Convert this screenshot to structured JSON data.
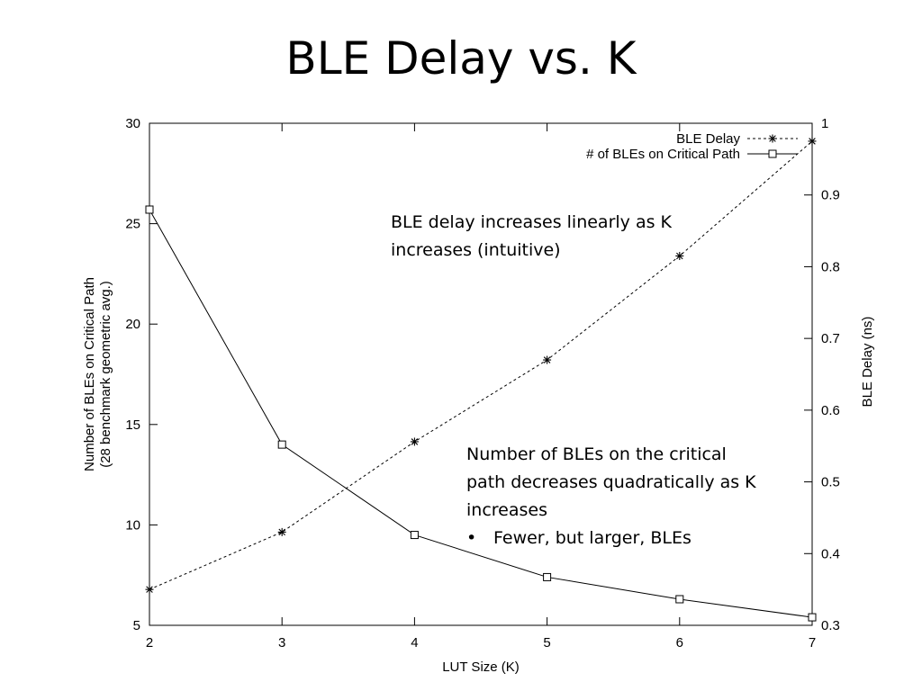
{
  "slide": {
    "title": "BLE Delay vs. K"
  },
  "chart_data": {
    "type": "line",
    "xlabel": "LUT Size (K)",
    "ylabel_left": [
      "Number of BLEs on Critical Path",
      "(28 benchmark geometric avg.)"
    ],
    "ylabel_right": "BLE Delay (ns)",
    "x": [
      2,
      3,
      4,
      5,
      6,
      7
    ],
    "xlim": [
      2,
      7
    ],
    "ylim_left": [
      5,
      30
    ],
    "ylim_right": [
      0.3,
      1
    ],
    "xticks": [
      "2",
      "3",
      "4",
      "5",
      "6",
      "7"
    ],
    "yticks_left": [
      "5",
      "10",
      "15",
      "20",
      "25",
      "30"
    ],
    "yticks_right": [
      "0.3",
      "0.4",
      "0.5",
      "0.6",
      "0.7",
      "0.8",
      "0.9",
      "1"
    ],
    "grid": false,
    "legend_position": "top-right",
    "series": [
      {
        "name": "BLE Delay",
        "axis": "right",
        "marker": "star",
        "line": "dashed",
        "values": [
          0.35,
          0.43,
          0.556,
          0.67,
          0.815,
          0.975
        ]
      },
      {
        "name": "# of BLEs on Critical Path",
        "axis": "left",
        "marker": "square",
        "line": "solid",
        "values": [
          25.7,
          14.0,
          9.5,
          7.4,
          6.3,
          5.4
        ]
      }
    ]
  },
  "annotations": {
    "delay_note": [
      "BLE delay increases linearly as K",
      "increases (intuitive)"
    ],
    "count_note": [
      "Number of BLEs on the critical",
      "path decreases quadratically as K",
      "increases"
    ],
    "count_bullet": {
      "mark": "•",
      "text": "Fewer, but larger, BLEs"
    }
  }
}
